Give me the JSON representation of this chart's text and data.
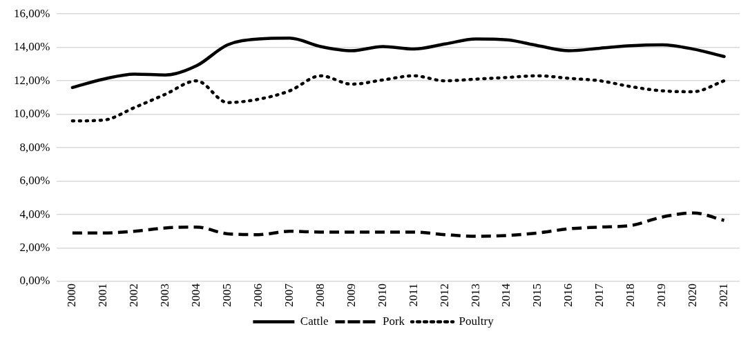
{
  "chart_data": {
    "type": "line",
    "categories": [
      "2000",
      "2001",
      "2002",
      "2003",
      "2004",
      "2005",
      "2006",
      "2007",
      "2008",
      "2009",
      "2010",
      "2011",
      "2012",
      "2013",
      "2014",
      "2015",
      "2016",
      "2017",
      "2018",
      "2019",
      "2020",
      "2021"
    ],
    "series": [
      {
        "name": "Cattle",
        "color": "#000000",
        "line_style": "solid",
        "values": [
          11.6,
          12.1,
          12.4,
          12.35,
          12.9,
          14.15,
          14.5,
          14.55,
          14.05,
          13.8,
          14.05,
          13.9,
          14.2,
          14.5,
          14.45,
          14.1,
          13.8,
          13.95,
          14.1,
          14.15,
          13.9,
          13.45
        ]
      },
      {
        "name": "Pork",
        "color": "#000000",
        "line_style": "dashed",
        "values": [
          2.9,
          2.9,
          3.0,
          3.2,
          3.25,
          2.85,
          2.8,
          3.0,
          2.95,
          2.95,
          2.95,
          2.95,
          2.8,
          2.7,
          2.75,
          2.9,
          3.15,
          3.25,
          3.35,
          3.85,
          4.1,
          3.65
        ]
      },
      {
        "name": "Poultry",
        "color": "#000000",
        "line_style": "dotted",
        "values": [
          9.6,
          9.65,
          10.4,
          11.2,
          12.0,
          10.7,
          10.9,
          11.4,
          12.3,
          11.8,
          12.05,
          12.3,
          12.0,
          12.1,
          12.2,
          12.3,
          12.15,
          12.0,
          11.65,
          11.4,
          11.35,
          12.0
        ]
      }
    ],
    "ylim": [
      0,
      16
    ],
    "yticks": [
      {
        "value": 0,
        "label": "0,00%"
      },
      {
        "value": 2,
        "label": "2,00%"
      },
      {
        "value": 4,
        "label": "4,00%"
      },
      {
        "value": 6,
        "label": "6,00%"
      },
      {
        "value": 8,
        "label": "8,00%"
      },
      {
        "value": 10,
        "label": "10,00%"
      },
      {
        "value": 12,
        "label": "12,00%"
      },
      {
        "value": 14,
        "label": "14,00%"
      },
      {
        "value": 16,
        "label": "16,00%"
      }
    ],
    "grid": "y",
    "legend": "bottom",
    "marker": "none"
  }
}
